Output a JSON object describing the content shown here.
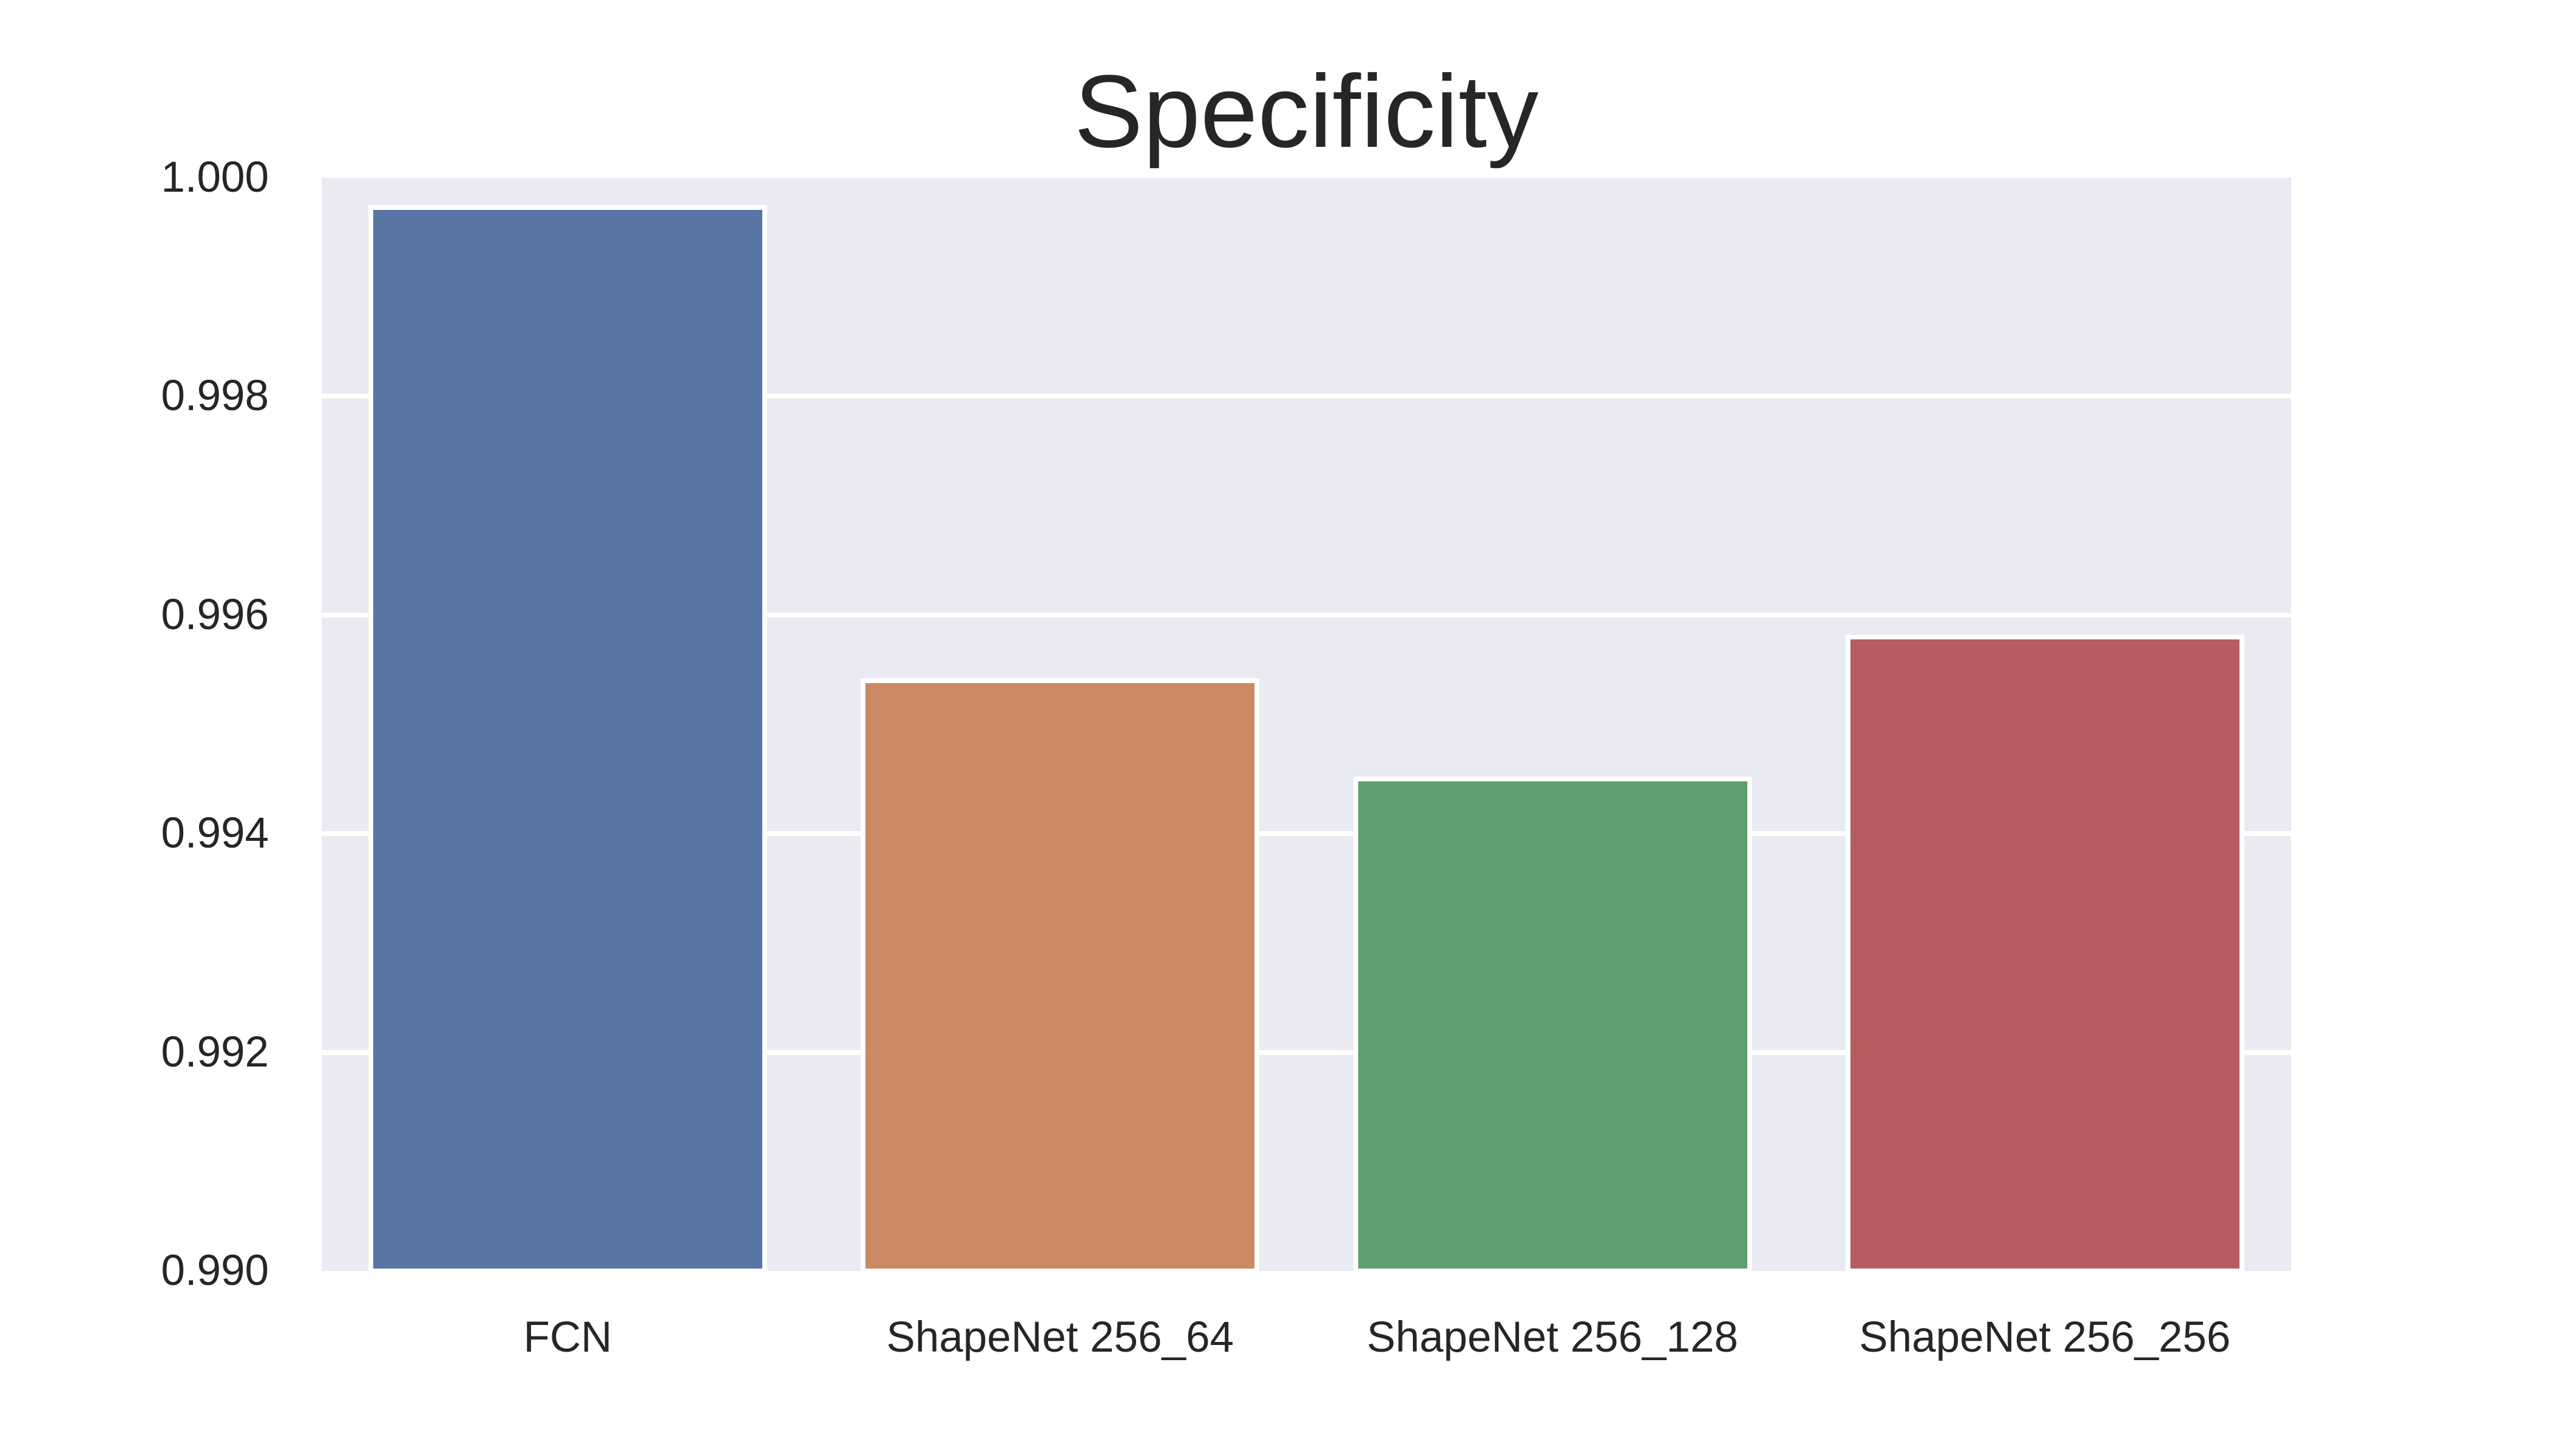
{
  "chart_data": {
    "type": "bar",
    "title": "Specificity",
    "xlabel": "",
    "ylabel": "",
    "categories": [
      "FCN",
      "ShapeNet 256_64",
      "ShapeNet 256_128",
      "ShapeNet 256_256"
    ],
    "values": [
      0.99973,
      0.9954,
      0.9945,
      0.9958
    ],
    "colors": [
      "#5975a4",
      "#cc8963",
      "#5f9e6e",
      "#b55d60"
    ],
    "ylim": [
      0.99,
      1.0
    ],
    "yticks": [
      "0.990",
      "0.992",
      "0.994",
      "0.996",
      "0.998",
      "1.000"
    ],
    "grid": true,
    "legend": null,
    "background": "#eaeaf2"
  }
}
